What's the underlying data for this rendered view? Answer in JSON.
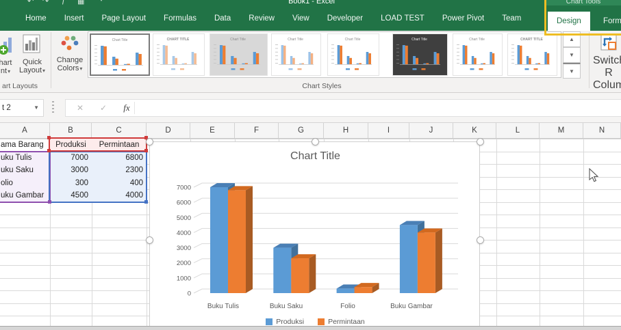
{
  "title_bar": {
    "window_title": "Book1 - Excel",
    "contextual_tab_group": "Chart Tools",
    "quick_access_icons": [
      "undo-icon",
      "redo-icon",
      "fx-icon",
      "grid-icon",
      "customize-caret-icon"
    ]
  },
  "tabs": [
    {
      "label": "Home",
      "active": false,
      "contextual": false
    },
    {
      "label": "Insert",
      "active": false,
      "contextual": false
    },
    {
      "label": "Page Layout",
      "active": false,
      "contextual": false
    },
    {
      "label": "Formulas",
      "active": false,
      "contextual": false
    },
    {
      "label": "Data",
      "active": false,
      "contextual": false
    },
    {
      "label": "Review",
      "active": false,
      "contextual": false
    },
    {
      "label": "View",
      "active": false,
      "contextual": false
    },
    {
      "label": "Developer",
      "active": false,
      "contextual": false
    },
    {
      "label": "LOAD TEST",
      "active": false,
      "contextual": false
    },
    {
      "label": "Power Pivot",
      "active": false,
      "contextual": false
    },
    {
      "label": "Team",
      "active": false,
      "contextual": false
    },
    {
      "label": "Design",
      "active": true,
      "contextual": true
    },
    {
      "label": "Form",
      "active": false,
      "contextual": true
    }
  ],
  "ribbon": {
    "add_chart_element": {
      "label_line1": "hart",
      "label_line2": "nt",
      "caret": "▾"
    },
    "quick_layout": {
      "label_line1": "Quick",
      "label_line2": "Layout",
      "caret": "▾"
    },
    "chart_layouts_group_label": "art Layouts",
    "change_colors": {
      "label_line1": "Change",
      "label_line2": "Colors",
      "caret": "▾"
    },
    "chart_styles_group_label": "Chart Styles",
    "style_thumbnails": [
      {
        "name": "chart-style-1",
        "variant": "selected"
      },
      {
        "name": "chart-style-2",
        "variant": "sketch"
      },
      {
        "name": "chart-style-3",
        "variant": "current"
      },
      {
        "name": "chart-style-4",
        "variant": "pale"
      },
      {
        "name": "chart-style-5",
        "variant": "plain"
      },
      {
        "name": "chart-style-6",
        "variant": "dark"
      },
      {
        "name": "chart-style-7",
        "variant": "plain"
      },
      {
        "name": "chart-style-8",
        "variant": "caps"
      }
    ],
    "gallery_scroll": {
      "up": "▲",
      "down": "▼",
      "more": "▼"
    },
    "switch_row_column": {
      "label_line1": "Switch R",
      "label_line2": "Colum"
    }
  },
  "formula_bar": {
    "name_box_value": "t 2",
    "cancel_label": "✕",
    "enter_label": "✓",
    "fx_label": "fx",
    "formula_value": ""
  },
  "sheet": {
    "column_headers": [
      "A",
      "B",
      "C",
      "D",
      "E",
      "F",
      "G",
      "H",
      "I",
      "J",
      "K",
      "L",
      "M",
      "N"
    ],
    "header_row": {
      "name": "ama Barang",
      "produksi": "Produksi",
      "permintaan": "Permintaan"
    },
    "rows": [
      {
        "name": "uku Tulis",
        "produksi": "7000",
        "permintaan": "6800"
      },
      {
        "name": "uku Saku",
        "produksi": "3000",
        "permintaan": "2300"
      },
      {
        "name": "olio",
        "produksi": "300",
        "permintaan": "400"
      },
      {
        "name": "uku Gambar",
        "produksi": "4500",
        "permintaan": "4000"
      }
    ]
  },
  "chart_data": {
    "type": "bar",
    "subtype": "3d-clustered-column",
    "title": "Chart Title",
    "categories": [
      "Buku Tulis",
      "Buku Saku",
      "Folio",
      "Buku Gambar"
    ],
    "series": [
      {
        "name": "Produksi",
        "color": "#5b9bd5",
        "values": [
          7000,
          3000,
          300,
          4500
        ]
      },
      {
        "name": "Permintaan",
        "color": "#ed7d31",
        "values": [
          6800,
          2300,
          400,
          4000
        ]
      }
    ],
    "ylim": [
      0,
      7000
    ],
    "ytick_step": 1000,
    "grid": true,
    "legend_position": "bottom"
  },
  "colors": {
    "excel_green": "#217346",
    "contextual_green": "#2f8757",
    "highlight_yellow": "#eebd23",
    "series_blue": "#5b9bd5",
    "series_orange": "#ed7d31",
    "range_red": "#cf3b3b",
    "range_blue": "#4472c4",
    "range_purple": "#8e4fae"
  }
}
